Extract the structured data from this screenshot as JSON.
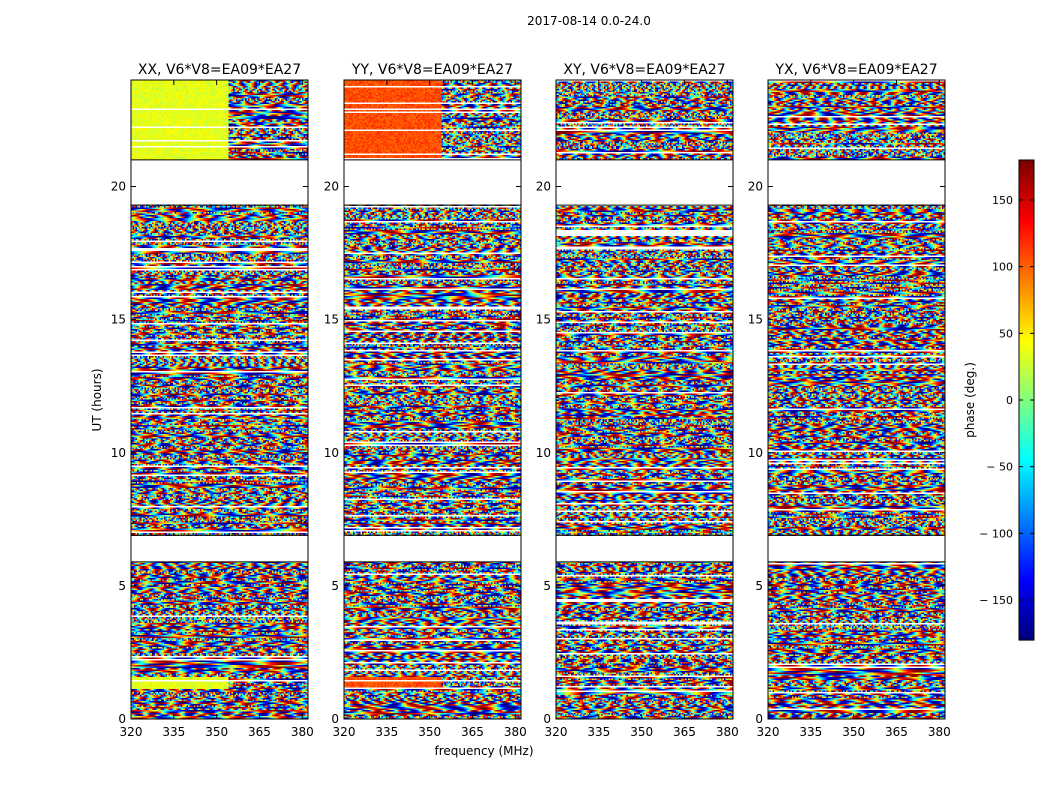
{
  "figure": {
    "suptitle": "2017-08-14 0.0-24.0"
  },
  "chart_data": {
    "type": "heatmap",
    "x": {
      "label": "frequency (MHz)",
      "range": [
        320,
        382
      ],
      "ticks": [
        320,
        335,
        350,
        365,
        380
      ],
      "tick_labels": [
        "320",
        "335",
        "350",
        "365",
        "380"
      ]
    },
    "y": {
      "label": "UT (hours)",
      "range": [
        0,
        24
      ],
      "ticks": [
        0,
        5,
        10,
        15,
        20
      ],
      "tick_labels": [
        "0",
        "5",
        "10",
        "15",
        "20"
      ]
    },
    "colorbar": {
      "label": "phase (deg.)",
      "range": [
        -180,
        180
      ],
      "ticks": [
        150,
        100,
        50,
        0,
        -50,
        -100,
        -150
      ],
      "tick_labels": [
        "150",
        "100",
        "50",
        "0",
        "− 50",
        "− 100",
        "− 150"
      ],
      "colormap": [
        "#00007f",
        "#0000ff",
        "#007fff",
        "#00ffff",
        "#7fff7f",
        "#ffff00",
        "#ff7f00",
        "#ff0000",
        "#7f0000"
      ]
    },
    "panels": [
      {
        "title": "XX, V6*V8=EA09*EA27",
        "pol": "XX"
      },
      {
        "title": "YY, V6*V8=EA09*EA27",
        "pol": "YY"
      },
      {
        "title": "XY, V6*V8=EA09*EA27",
        "pol": "XY"
      },
      {
        "title": "YX, V6*V8=EA09*EA27",
        "pol": "YX"
      }
    ],
    "flagged_ut_ranges": [
      [
        19.3,
        21.0
      ],
      [
        5.9,
        6.9
      ]
    ]
  }
}
